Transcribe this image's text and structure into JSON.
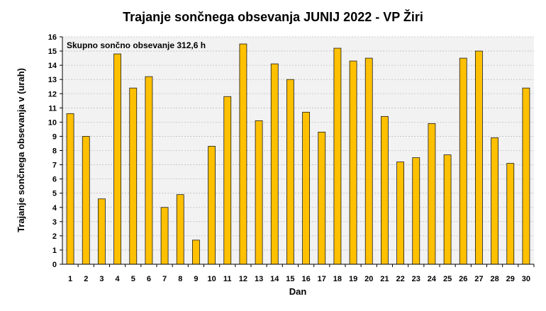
{
  "chart_data": {
    "type": "bar",
    "title": "Trajanje  sončnega obsevanja  JUNIJ 2022 - VP Žiri",
    "xlabel": "Dan",
    "ylabel": "Trajanje  sončnega obsevanja  v (urah)",
    "annotation": "Skupno sončno obsevanje 312,6 h",
    "categories": [
      "1",
      "2",
      "3",
      "4",
      "5",
      "6",
      "7",
      "8",
      "9",
      "10",
      "11",
      "12",
      "13",
      "14",
      "15",
      "16",
      "17",
      "18",
      "19",
      "20",
      "21",
      "22",
      "23",
      "24",
      "25",
      "26",
      "27",
      "28",
      "29",
      "30"
    ],
    "values": [
      10.6,
      9.0,
      4.6,
      14.8,
      12.4,
      13.2,
      4.0,
      4.9,
      1.7,
      8.3,
      11.8,
      15.5,
      10.1,
      14.1,
      13.0,
      10.7,
      9.3,
      15.2,
      14.3,
      14.5,
      10.4,
      7.2,
      7.5,
      9.9,
      7.7,
      14.5,
      15.0,
      8.9,
      7.1,
      12.4
    ],
    "ylim": [
      0,
      16
    ],
    "yticks": [
      0,
      1,
      2,
      3,
      4,
      5,
      6,
      7,
      8,
      9,
      10,
      11,
      12,
      13,
      14,
      15,
      16
    ],
    "grid": true,
    "colors": {
      "bar": "#FFC000",
      "plot_background": "#F2F2F2"
    }
  }
}
